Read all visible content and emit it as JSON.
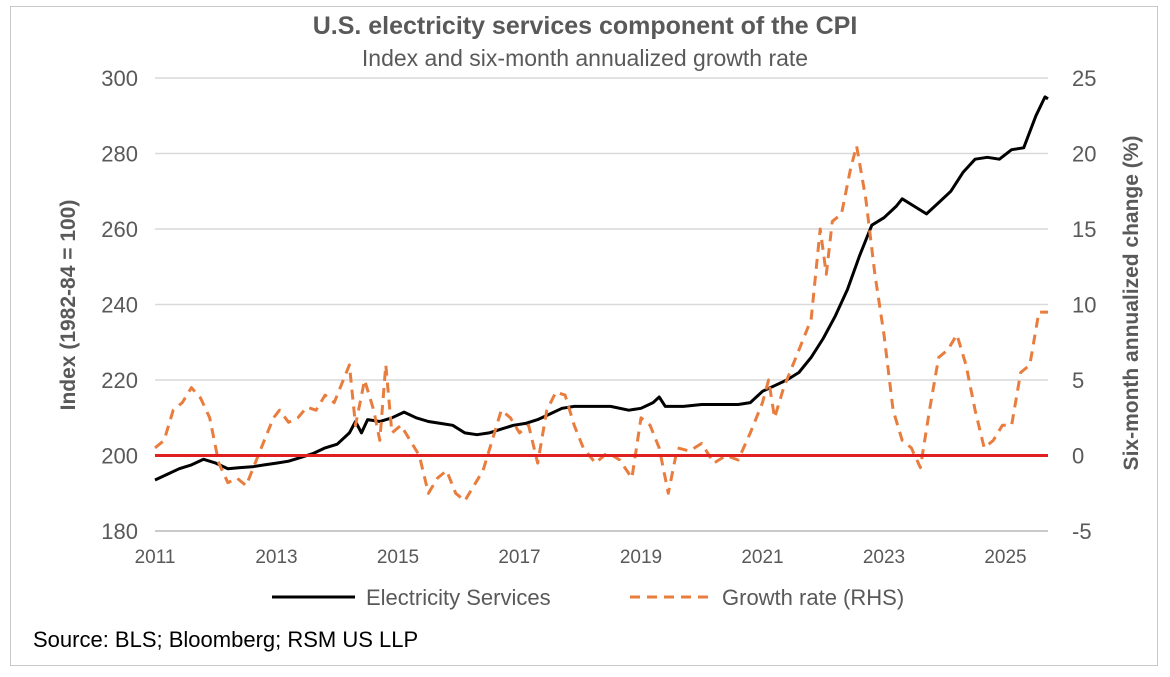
{
  "chart_data": {
    "type": "line",
    "title": "U.S. electricity services component of the CPI",
    "subtitle": "Index and six-month annualized growth rate",
    "ylabel": "Index (1982-84 = 100)",
    "y2label": "Six-month annualized change (%)",
    "ylim": [
      180,
      300
    ],
    "y2lim": [
      -5,
      25
    ],
    "xlim": [
      2011,
      2025.7
    ],
    "x_ticks": [
      "2011",
      "2013",
      "2015",
      "2017",
      "2019",
      "2021",
      "2023",
      "2025"
    ],
    "y_ticks": [
      "180",
      "200",
      "220",
      "240",
      "260",
      "280",
      "300"
    ],
    "y2_ticks": [
      "-5",
      "0",
      "5",
      "10",
      "15",
      "20",
      "25"
    ],
    "reference_line": {
      "axis": "y2",
      "value": 0,
      "color": "#e02020"
    },
    "grid": "horizontal",
    "legend_position": "bottom",
    "source": "Source: BLS; Bloomberg; RSM US LLP",
    "series": [
      {
        "name": "Electricity Services",
        "axis": "left",
        "style": "solid",
        "color": "#000000",
        "points": [
          [
            2011.0,
            193.5
          ],
          [
            2011.2,
            195.0
          ],
          [
            2011.4,
            196.5
          ],
          [
            2011.6,
            197.5
          ],
          [
            2011.8,
            199.0
          ],
          [
            2012.0,
            198.0
          ],
          [
            2012.2,
            196.5
          ],
          [
            2012.4,
            196.8
          ],
          [
            2012.6,
            197.0
          ],
          [
            2012.8,
            197.5
          ],
          [
            2013.0,
            198.0
          ],
          [
            2013.2,
            198.5
          ],
          [
            2013.4,
            199.5
          ],
          [
            2013.6,
            200.5
          ],
          [
            2013.8,
            202.0
          ],
          [
            2014.0,
            203.0
          ],
          [
            2014.2,
            206.0
          ],
          [
            2014.3,
            209.0
          ],
          [
            2014.4,
            206.0
          ],
          [
            2014.5,
            209.5
          ],
          [
            2014.7,
            209.0
          ],
          [
            2014.9,
            210.0
          ],
          [
            2015.1,
            211.5
          ],
          [
            2015.3,
            210.0
          ],
          [
            2015.5,
            209.0
          ],
          [
            2015.7,
            208.5
          ],
          [
            2015.9,
            208.0
          ],
          [
            2016.1,
            206.0
          ],
          [
            2016.3,
            205.5
          ],
          [
            2016.5,
            206.0
          ],
          [
            2016.7,
            207.0
          ],
          [
            2016.9,
            208.0
          ],
          [
            2017.1,
            208.5
          ],
          [
            2017.3,
            209.5
          ],
          [
            2017.5,
            211.0
          ],
          [
            2017.7,
            212.5
          ],
          [
            2017.9,
            213.0
          ],
          [
            2018.2,
            213.0
          ],
          [
            2018.5,
            213.0
          ],
          [
            2018.8,
            212.0
          ],
          [
            2019.0,
            212.5
          ],
          [
            2019.2,
            214.0
          ],
          [
            2019.3,
            215.5
          ],
          [
            2019.4,
            213.0
          ],
          [
            2019.7,
            213.0
          ],
          [
            2020.0,
            213.5
          ],
          [
            2020.3,
            213.5
          ],
          [
            2020.6,
            213.5
          ],
          [
            2020.8,
            214.0
          ],
          [
            2021.0,
            217.0
          ],
          [
            2021.2,
            218.5
          ],
          [
            2021.4,
            220.0
          ],
          [
            2021.6,
            222.0
          ],
          [
            2021.8,
            226.0
          ],
          [
            2022.0,
            231.0
          ],
          [
            2022.2,
            237.0
          ],
          [
            2022.4,
            244.0
          ],
          [
            2022.6,
            253.0
          ],
          [
            2022.8,
            261.0
          ],
          [
            2023.0,
            263.0
          ],
          [
            2023.2,
            266.0
          ],
          [
            2023.3,
            268.0
          ],
          [
            2023.5,
            266.0
          ],
          [
            2023.7,
            264.0
          ],
          [
            2023.9,
            267.0
          ],
          [
            2024.1,
            270.0
          ],
          [
            2024.3,
            275.0
          ],
          [
            2024.5,
            278.5
          ],
          [
            2024.7,
            279.0
          ],
          [
            2024.9,
            278.5
          ],
          [
            2025.1,
            281.0
          ],
          [
            2025.3,
            281.5
          ],
          [
            2025.5,
            290.0
          ],
          [
            2025.65,
            295.0
          ],
          [
            2025.7,
            294.5
          ]
        ]
      },
      {
        "name": "Growth rate (RHS)",
        "axis": "right",
        "style": "dashed",
        "color": "#e87d3e",
        "points": [
          [
            2011.0,
            0.5
          ],
          [
            2011.15,
            1.0
          ],
          [
            2011.3,
            3.0
          ],
          [
            2011.45,
            3.5
          ],
          [
            2011.6,
            4.5
          ],
          [
            2011.75,
            3.8
          ],
          [
            2011.9,
            2.5
          ],
          [
            2012.05,
            -0.5
          ],
          [
            2012.2,
            -1.8
          ],
          [
            2012.35,
            -1.5
          ],
          [
            2012.5,
            -2.0
          ],
          [
            2012.65,
            -0.5
          ],
          [
            2012.8,
            1.0
          ],
          [
            2012.95,
            2.5
          ],
          [
            2013.05,
            3.0
          ],
          [
            2013.2,
            2.2
          ],
          [
            2013.35,
            2.5
          ],
          [
            2013.5,
            3.2
          ],
          [
            2013.65,
            3.0
          ],
          [
            2013.8,
            4.0
          ],
          [
            2013.95,
            3.5
          ],
          [
            2014.1,
            5.0
          ],
          [
            2014.2,
            6.0
          ],
          [
            2014.3,
            2.0
          ],
          [
            2014.45,
            5.0
          ],
          [
            2014.6,
            3.0
          ],
          [
            2014.7,
            1.0
          ],
          [
            2014.8,
            6.0
          ],
          [
            2014.9,
            1.5
          ],
          [
            2015.05,
            2.0
          ],
          [
            2015.2,
            1.0
          ],
          [
            2015.35,
            0.0
          ],
          [
            2015.5,
            -2.5
          ],
          [
            2015.65,
            -1.5
          ],
          [
            2015.8,
            -1.0
          ],
          [
            2015.95,
            -2.5
          ],
          [
            2016.1,
            -3.0
          ],
          [
            2016.25,
            -2.0
          ],
          [
            2016.4,
            -1.0
          ],
          [
            2016.55,
            1.0
          ],
          [
            2016.7,
            3.0
          ],
          [
            2016.85,
            2.5
          ],
          [
            2017.0,
            1.5
          ],
          [
            2017.15,
            2.0
          ],
          [
            2017.3,
            -0.5
          ],
          [
            2017.45,
            3.0
          ],
          [
            2017.6,
            4.2
          ],
          [
            2017.75,
            4.0
          ],
          [
            2017.9,
            2.0
          ],
          [
            2018.05,
            0.5
          ],
          [
            2018.25,
            -0.5
          ],
          [
            2018.45,
            0.2
          ],
          [
            2018.65,
            -0.3
          ],
          [
            2018.85,
            -1.5
          ],
          [
            2019.0,
            2.5
          ],
          [
            2019.15,
            2.0
          ],
          [
            2019.3,
            0.5
          ],
          [
            2019.45,
            -2.5
          ],
          [
            2019.6,
            0.5
          ],
          [
            2019.8,
            0.3
          ],
          [
            2020.0,
            0.8
          ],
          [
            2020.2,
            -0.5
          ],
          [
            2020.4,
            0.0
          ],
          [
            2020.6,
            -0.3
          ],
          [
            2020.8,
            1.5
          ],
          [
            2021.0,
            3.5
          ],
          [
            2021.1,
            5.0
          ],
          [
            2021.2,
            2.5
          ],
          [
            2021.35,
            4.5
          ],
          [
            2021.5,
            6.0
          ],
          [
            2021.65,
            7.5
          ],
          [
            2021.8,
            9.0
          ],
          [
            2021.95,
            15.0
          ],
          [
            2022.05,
            12.0
          ],
          [
            2022.15,
            15.5
          ],
          [
            2022.3,
            16.0
          ],
          [
            2022.45,
            19.0
          ],
          [
            2022.55,
            20.5
          ],
          [
            2022.7,
            17.0
          ],
          [
            2022.85,
            12.0
          ],
          [
            2023.0,
            8.0
          ],
          [
            2023.15,
            3.0
          ],
          [
            2023.3,
            1.0
          ],
          [
            2023.45,
            0.5
          ],
          [
            2023.6,
            -0.8
          ],
          [
            2023.75,
            3.0
          ],
          [
            2023.9,
            6.5
          ],
          [
            2024.05,
            7.0
          ],
          [
            2024.2,
            8.0
          ],
          [
            2024.35,
            6.0
          ],
          [
            2024.5,
            3.0
          ],
          [
            2024.65,
            0.5
          ],
          [
            2024.8,
            1.0
          ],
          [
            2024.95,
            2.0
          ],
          [
            2025.1,
            2.0
          ],
          [
            2025.25,
            5.5
          ],
          [
            2025.4,
            6.0
          ],
          [
            2025.55,
            9.5
          ],
          [
            2025.7,
            9.5
          ]
        ]
      }
    ]
  }
}
